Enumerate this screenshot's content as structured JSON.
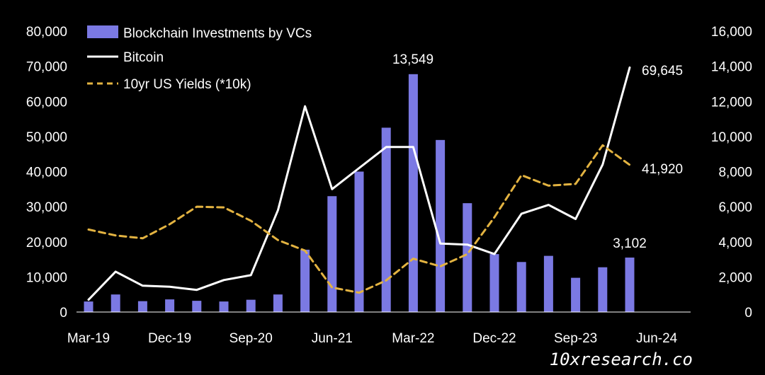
{
  "chart_data": {
    "type": "bar",
    "legend_position": "top-left",
    "grid": false,
    "x": [
      "Mar-19",
      "Jun-19",
      "Sep-19",
      "Dec-19",
      "Mar-20",
      "Jun-20",
      "Sep-20",
      "Dec-20",
      "Mar-21",
      "Jun-21",
      "Sep-21",
      "Dec-21",
      "Mar-22",
      "Jun-22",
      "Sep-22",
      "Dec-22",
      "Mar-23",
      "Jun-23",
      "Sep-23",
      "Dec-23",
      "Mar-24",
      "Jun-24"
    ],
    "x_tick_labels": [
      "Mar-19",
      "Dec-19",
      "Sep-20",
      "Jun-21",
      "Mar-22",
      "Dec-22",
      "Sep-23",
      "Jun-24"
    ],
    "y_left": {
      "range": [
        0,
        80000
      ],
      "ticks": [
        "0",
        "10,000",
        "20,000",
        "30,000",
        "40,000",
        "50,000",
        "60,000",
        "70,000",
        "80,000"
      ]
    },
    "y_right": {
      "range": [
        0,
        16000
      ],
      "ticks": [
        "0",
        "2,000",
        "4,000",
        "6,000",
        "8,000",
        "10,000",
        "12,000",
        "14,000",
        "16,000"
      ]
    },
    "series": [
      {
        "name": "Blockchain Investments by VCs",
        "type": "bar",
        "axis": "right",
        "color": "#7b79e3",
        "values": [
          600,
          1000,
          620,
          720,
          640,
          600,
          700,
          1000,
          3550,
          6600,
          8000,
          10500,
          13549,
          9800,
          6200,
          3300,
          2850,
          3200,
          1950,
          2550,
          3102,
          null
        ]
      },
      {
        "name": "Bitcoin",
        "type": "line",
        "axis": "left",
        "color": "#ffffff",
        "dash": false,
        "values": [
          3500,
          11500,
          7500,
          7200,
          6300,
          9100,
          10500,
          29000,
          58600,
          35000,
          41000,
          47000,
          47000,
          19500,
          19200,
          16500,
          28000,
          30500,
          26500,
          42000,
          69645,
          null
        ]
      },
      {
        "name": "10yr US Yields (*10k)",
        "type": "line",
        "axis": "left",
        "color": "#e3b341",
        "dash": true,
        "values": [
          23500,
          21800,
          21000,
          25000,
          30000,
          29800,
          26000,
          20500,
          17500,
          7000,
          5500,
          9000,
          15200,
          13000,
          16500,
          27000,
          39000,
          36000,
          36500,
          47500,
          41920,
          null
        ]
      }
    ],
    "data_labels": [
      {
        "text": "13,549",
        "series": "Blockchain Investments by VCs"
      },
      {
        "text": "3,102",
        "series": "Blockchain Investments by VCs"
      },
      {
        "text": "69,645",
        "series": "Bitcoin"
      },
      {
        "text": "41,920",
        "series": "10yr US Yields (*10k)"
      }
    ]
  },
  "watermark": "10xresearch.co"
}
